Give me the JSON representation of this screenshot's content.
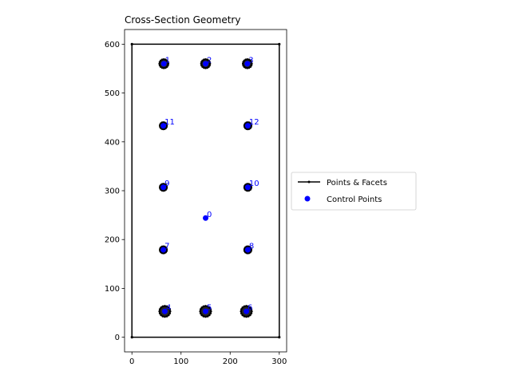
{
  "chart_data": {
    "type": "scatter",
    "title": "Cross-Section Geometry",
    "xlabel": "",
    "ylabel": "",
    "xlim": [
      -15,
      315
    ],
    "ylim": [
      -30,
      630
    ],
    "x_ticks": [
      0,
      100,
      200,
      300
    ],
    "y_ticks": [
      0,
      100,
      200,
      300,
      400,
      500,
      600
    ],
    "grid": false,
    "legend_location": "center-right outside",
    "legend": [
      "Points & Facets",
      "Control Points"
    ],
    "colors": {
      "facets": "#000000",
      "control_points": "#0000ff",
      "label_text": "#0000ff"
    },
    "outline": [
      [
        0,
        0
      ],
      [
        300,
        0
      ],
      [
        300,
        600
      ],
      [
        0,
        600
      ],
      [
        0,
        0
      ]
    ],
    "bars": [
      {
        "x": 65,
        "y": 560,
        "r": 9
      },
      {
        "x": 150,
        "y": 560,
        "r": 9
      },
      {
        "x": 235,
        "y": 560,
        "r": 9
      },
      {
        "x": 64,
        "y": 433,
        "r": 7
      },
      {
        "x": 236,
        "y": 433,
        "r": 7
      },
      {
        "x": 64,
        "y": 307,
        "r": 7
      },
      {
        "x": 236,
        "y": 307,
        "r": 7
      },
      {
        "x": 64,
        "y": 179,
        "r": 7
      },
      {
        "x": 236,
        "y": 179,
        "r": 7
      },
      {
        "x": 67,
        "y": 53,
        "r": 11
      },
      {
        "x": 150,
        "y": 53,
        "r": 11
      },
      {
        "x": 233,
        "y": 53,
        "r": 11
      }
    ],
    "control_points": [
      {
        "label": "0",
        "x": 150,
        "y": 244
      },
      {
        "label": "1",
        "x": 65,
        "y": 560
      },
      {
        "label": "2",
        "x": 150,
        "y": 560
      },
      {
        "label": "3",
        "x": 235,
        "y": 560
      },
      {
        "label": "4",
        "x": 67,
        "y": 53
      },
      {
        "label": "5",
        "x": 150,
        "y": 53
      },
      {
        "label": "6",
        "x": 233,
        "y": 53
      },
      {
        "label": "7",
        "x": 64,
        "y": 179
      },
      {
        "label": "8",
        "x": 236,
        "y": 179
      },
      {
        "label": "9",
        "x": 64,
        "y": 307
      },
      {
        "label": "10",
        "x": 236,
        "y": 307
      },
      {
        "label": "11",
        "x": 64,
        "y": 433
      },
      {
        "label": "12",
        "x": 236,
        "y": 433
      }
    ]
  }
}
